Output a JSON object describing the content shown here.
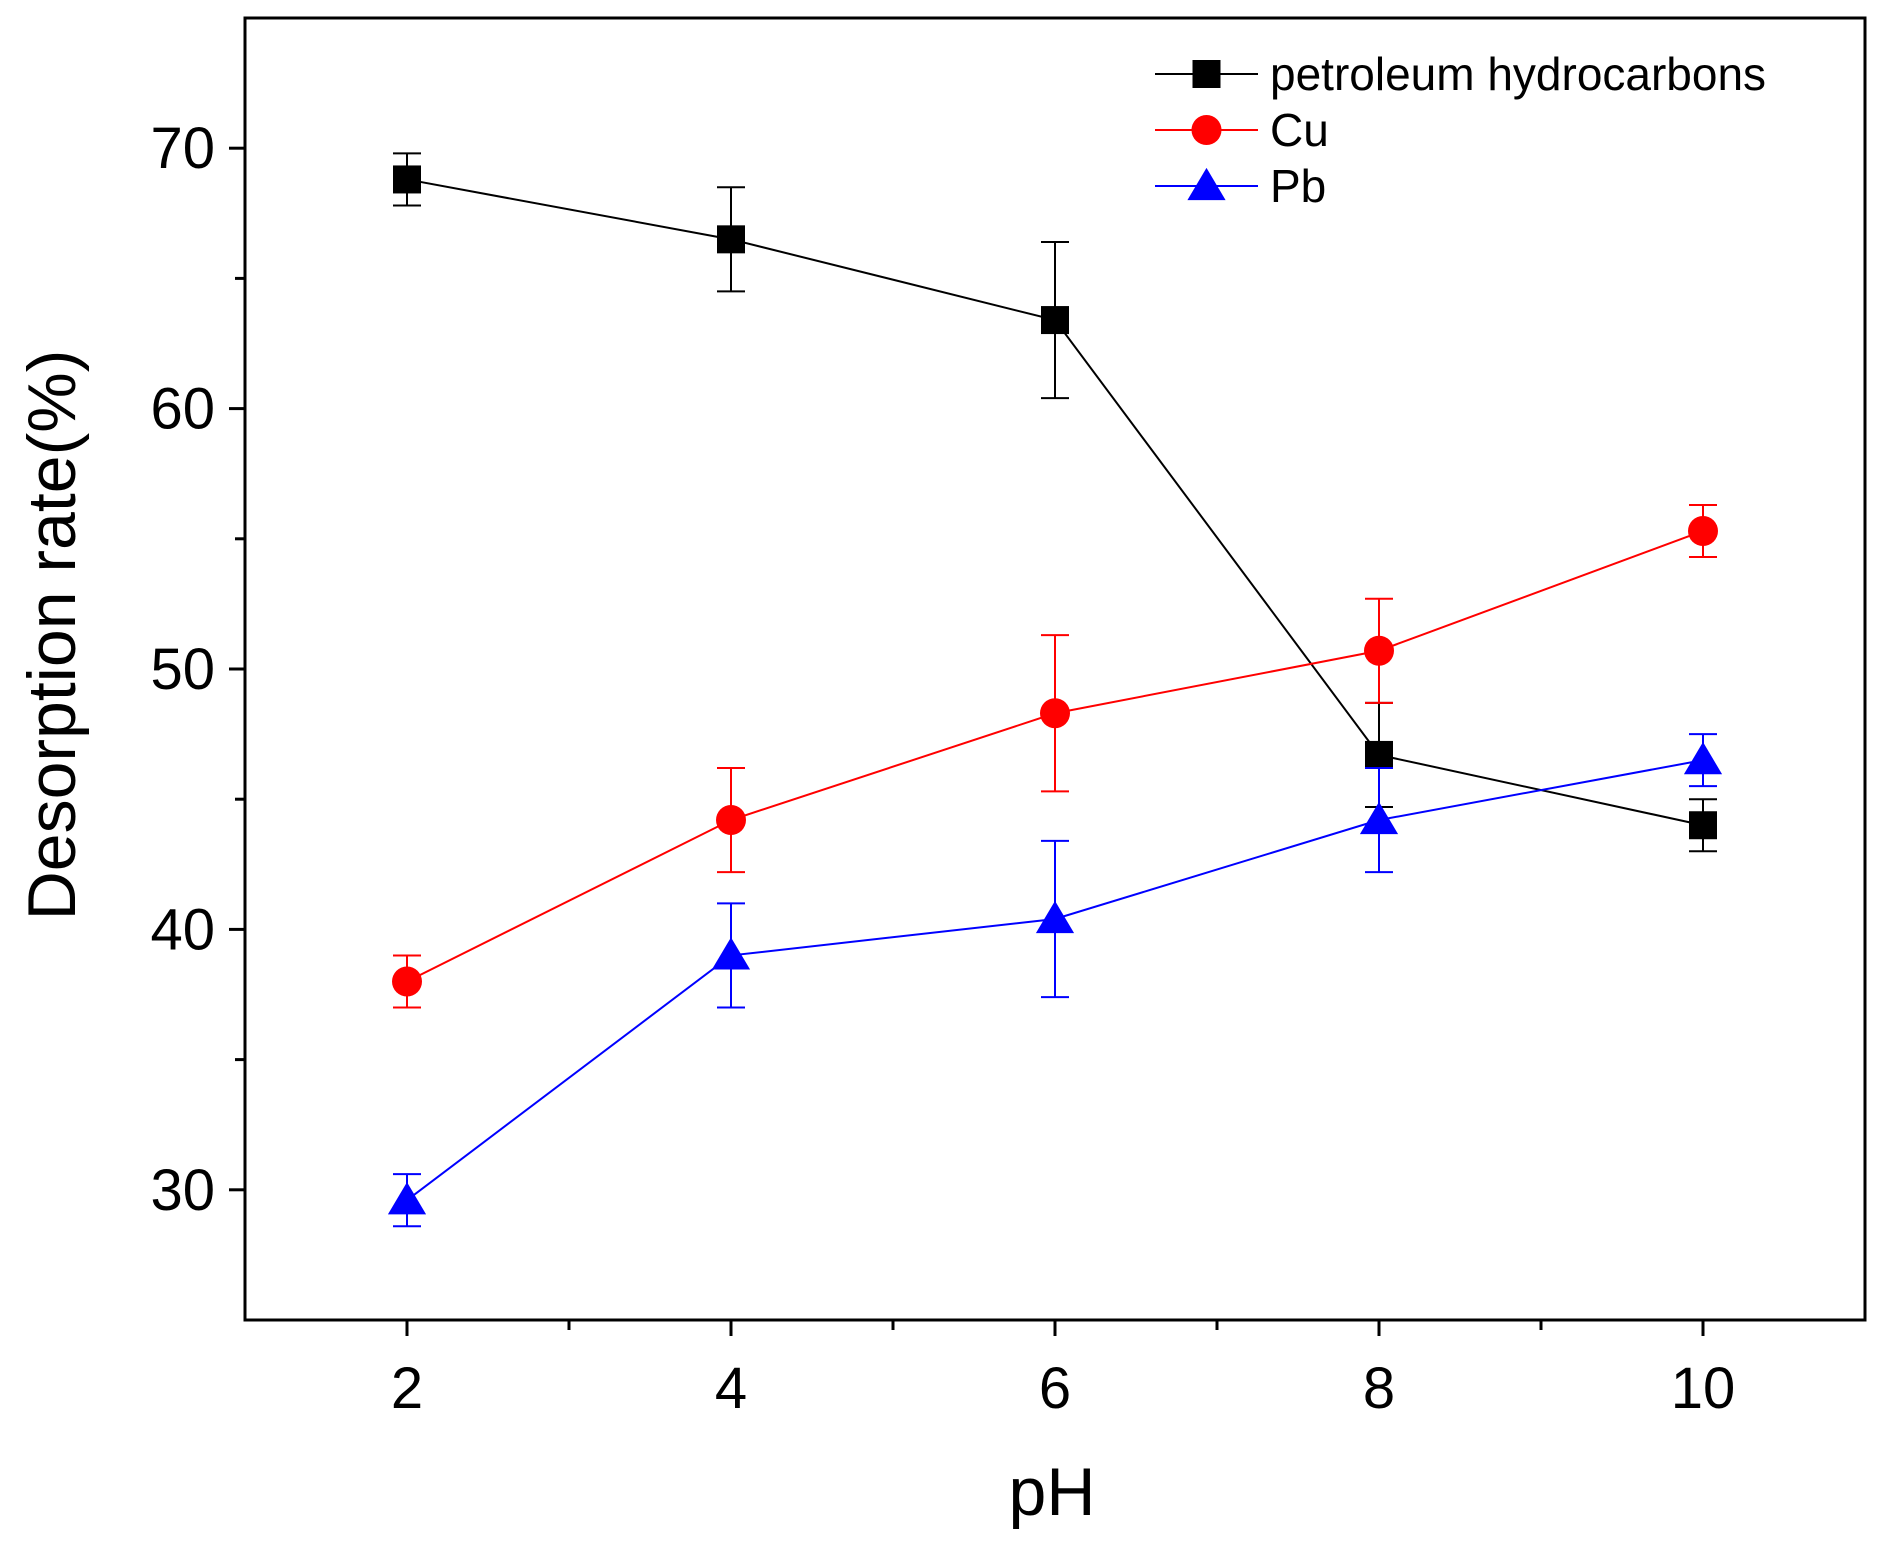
{
  "chart_data": {
    "type": "line",
    "title": "",
    "xlabel": "pH",
    "ylabel": "Desorption rate(%)",
    "xlim": [
      1,
      11
    ],
    "ylim": [
      25,
      75
    ],
    "xticks": [
      2,
      4,
      6,
      8,
      10
    ],
    "xtick_labels": [
      "2",
      "4",
      "6",
      "8",
      "10"
    ],
    "xminor": [
      3,
      5,
      7,
      9
    ],
    "yticks": [
      30,
      40,
      50,
      60,
      70
    ],
    "ytick_labels": [
      "30",
      "40",
      "50",
      "60",
      "70"
    ],
    "yminor": [
      35,
      45,
      55,
      65
    ],
    "grid": false,
    "legend_position": "top-right",
    "x": [
      2,
      4,
      6,
      8,
      10
    ],
    "series": [
      {
        "name": "petroleum hydrocarbons",
        "color": "#000000",
        "marker": "square",
        "values": [
          68.8,
          66.5,
          63.4,
          46.7,
          44.0
        ],
        "errors": [
          1.0,
          2.0,
          3.0,
          2.0,
          1.0
        ]
      },
      {
        "name": "Cu",
        "color": "#ff0000",
        "marker": "circle",
        "values": [
          38.0,
          44.2,
          48.3,
          50.7,
          55.3
        ],
        "errors": [
          1.0,
          2.0,
          3.0,
          2.0,
          1.0
        ]
      },
      {
        "name": "Pb",
        "color": "#0000ff",
        "marker": "triangle",
        "values": [
          29.6,
          39.0,
          40.4,
          44.2,
          46.5
        ],
        "errors": [
          1.0,
          2.0,
          3.0,
          2.0,
          1.0
        ]
      }
    ]
  }
}
